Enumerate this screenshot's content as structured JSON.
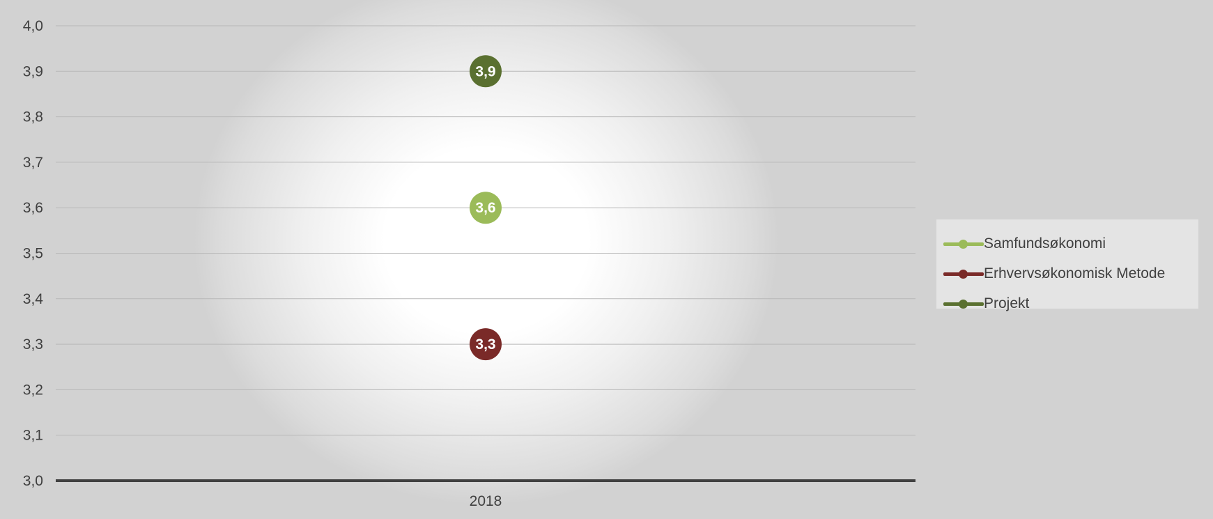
{
  "chart_data": {
    "type": "line",
    "categories": [
      "2018"
    ],
    "ylim": [
      3.0,
      4.0
    ],
    "yticks": [
      "3,0",
      "3,1",
      "3,2",
      "3,3",
      "3,4",
      "3,5",
      "3,6",
      "3,7",
      "3,8",
      "3,9",
      "4,0"
    ],
    "ytick_values": [
      3.0,
      3.1,
      3.2,
      3.3,
      3.4,
      3.5,
      3.6,
      3.7,
      3.8,
      3.9,
      4.0
    ],
    "grid": true,
    "legend_position": "right",
    "series": [
      {
        "name": "Samfundsøkonomi",
        "values": [
          3.6
        ],
        "labels": [
          "3,6"
        ],
        "color": "#9bbb59"
      },
      {
        "name": "Erhvervsøkonomisk Metode",
        "values": [
          3.3
        ],
        "labels": [
          "3,3"
        ],
        "color": "#7a2a28"
      },
      {
        "name": "Projekt",
        "values": [
          3.9
        ],
        "labels": [
          "3,9"
        ],
        "color": "#5a7030"
      }
    ]
  }
}
